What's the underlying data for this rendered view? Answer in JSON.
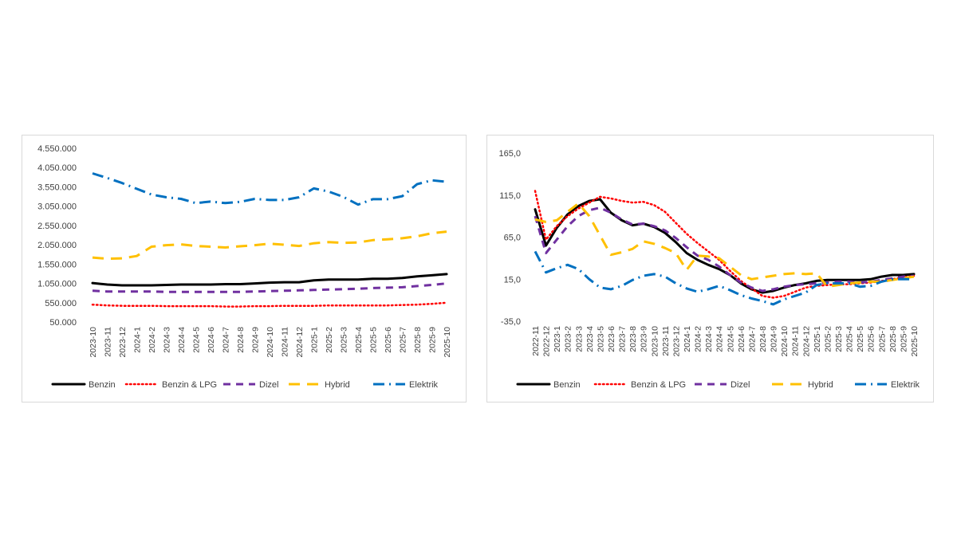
{
  "colors": {
    "Benzin": "#000000",
    "Benzin & LPG": "#ff0000",
    "Dizel": "#7030a0",
    "Hybrid": "#ffc000",
    "Elektrik": "#0070c0"
  },
  "chart_data": [
    {
      "type": "line",
      "title": "",
      "xlabel": "",
      "ylabel": "",
      "ylim": [
        50000,
        4550000
      ],
      "yticks": [
        "4.550.000",
        "4.050.000",
        "3.550.000",
        "3.050.000",
        "2.550.000",
        "2.050.000",
        "1.550.000",
        "1.050.000",
        "550.000",
        "50.000"
      ],
      "ytick_values": [
        4550000,
        4050000,
        3550000,
        3050000,
        2550000,
        2050000,
        1550000,
        1050000,
        550000,
        50000
      ],
      "grid": false,
      "legend_position": "bottom",
      "x": [
        "2023-10",
        "2023-11",
        "2023-12",
        "2024-1",
        "2024-2",
        "2024-3",
        "2024-4",
        "2024-5",
        "2024-6",
        "2024-7",
        "2024-8",
        "2024-9",
        "2024-10",
        "2024-11",
        "2024-12",
        "2025-1",
        "2025-2",
        "2025-3",
        "2025-4",
        "2025-5",
        "2025-6",
        "2025-7",
        "2025-8",
        "2025-9",
        "2025-10"
      ],
      "series": [
        {
          "name": "Benzin",
          "style": "solid",
          "values": [
            1060000,
            1020000,
            1000000,
            1000000,
            1000000,
            1010000,
            1020000,
            1020000,
            1020000,
            1030000,
            1030000,
            1050000,
            1070000,
            1080000,
            1080000,
            1130000,
            1150000,
            1150000,
            1150000,
            1170000,
            1170000,
            1190000,
            1230000,
            1260000,
            1290000
          ]
        },
        {
          "name": "Benzin & LPG",
          "style": "dotted",
          "values": [
            500000,
            480000,
            470000,
            470000,
            470000,
            460000,
            460000,
            460000,
            460000,
            450000,
            450000,
            460000,
            460000,
            470000,
            470000,
            470000,
            480000,
            480000,
            480000,
            480000,
            480000,
            490000,
            500000,
            520000,
            550000
          ]
        },
        {
          "name": "Dizel",
          "style": "dashed",
          "values": [
            860000,
            840000,
            840000,
            840000,
            840000,
            830000,
            830000,
            830000,
            830000,
            830000,
            830000,
            840000,
            850000,
            860000,
            870000,
            880000,
            890000,
            900000,
            910000,
            930000,
            940000,
            950000,
            980000,
            1010000,
            1050000
          ]
        },
        {
          "name": "Hybrid",
          "style": "longdash",
          "values": [
            1720000,
            1690000,
            1700000,
            1760000,
            2000000,
            2040000,
            2060000,
            2020000,
            2000000,
            1980000,
            2010000,
            2040000,
            2080000,
            2050000,
            2020000,
            2090000,
            2120000,
            2100000,
            2110000,
            2170000,
            2190000,
            2220000,
            2270000,
            2350000,
            2390000
          ]
        },
        {
          "name": "Elektrik",
          "style": "dashdot",
          "values": [
            3900000,
            3780000,
            3650000,
            3500000,
            3350000,
            3280000,
            3240000,
            3130000,
            3170000,
            3130000,
            3160000,
            3240000,
            3210000,
            3210000,
            3280000,
            3510000,
            3430000,
            3290000,
            3090000,
            3230000,
            3230000,
            3310000,
            3620000,
            3720000,
            3680000
          ]
        }
      ]
    },
    {
      "type": "line",
      "title": "",
      "xlabel": "",
      "ylabel": "",
      "ylim": [
        -35,
        165
      ],
      "yticks": [
        "165,0",
        "115,0",
        "65,0",
        "15,0",
        "-35,0"
      ],
      "ytick_values": [
        165,
        115,
        65,
        15,
        -35
      ],
      "grid": false,
      "legend_position": "bottom",
      "x": [
        "2022-11",
        "2022-12",
        "2023-1",
        "2023-2",
        "2023-3",
        "2023-4",
        "2023-5",
        "2023-6",
        "2023-7",
        "2023-8",
        "2023-9",
        "2023-10",
        "2023-11",
        "2023-12",
        "2024-1",
        "2024-2",
        "2024-3",
        "2024-4",
        "2024-5",
        "2024-6",
        "2024-7",
        "2024-8",
        "2024-9",
        "2024-10",
        "2024-11",
        "2024-12",
        "2025-1",
        "2025-2",
        "2025-3",
        "2025-4",
        "2025-5",
        "2025-6",
        "2025-7",
        "2025-8",
        "2025-9",
        "2025-10"
      ],
      "series": [
        {
          "name": "Benzin",
          "style": "solid",
          "values": [
            98,
            55,
            76,
            92,
            102,
            108,
            110,
            94,
            85,
            79,
            81,
            77,
            70,
            59,
            46,
            38,
            32,
            27,
            20,
            10,
            3,
            -1,
            1,
            5,
            8,
            10,
            13,
            14,
            14,
            14,
            14,
            15,
            18,
            20,
            20,
            21
          ]
        },
        {
          "name": "Benzin & LPG",
          "style": "dotted",
          "values": [
            120,
            62,
            78,
            90,
            99,
            106,
            113,
            111,
            108,
            106,
            107,
            103,
            95,
            82,
            69,
            58,
            48,
            38,
            25,
            13,
            4,
            -5,
            -7,
            -5,
            0,
            5,
            7,
            8,
            9,
            9,
            10,
            11,
            13,
            15,
            17,
            19
          ]
        },
        {
          "name": "Dizel",
          "style": "dashed",
          "values": [
            90,
            46,
            62,
            78,
            90,
            97,
            100,
            94,
            86,
            80,
            81,
            78,
            73,
            64,
            53,
            43,
            38,
            30,
            20,
            11,
            5,
            1,
            3,
            6,
            8,
            9,
            10,
            11,
            12,
            12,
            11,
            12,
            14,
            16,
            18,
            19
          ]
        },
        {
          "name": "Hybrid",
          "style": "longdash",
          "values": [
            86,
            83,
            85,
            95,
            105,
            90,
            67,
            44,
            47,
            51,
            60,
            57,
            52,
            46,
            26,
            43,
            42,
            40,
            30,
            20,
            15,
            17,
            19,
            21,
            22,
            21,
            22,
            6,
            8,
            10,
            11,
            12,
            12,
            14,
            16,
            18
          ]
        },
        {
          "name": "Elektrik",
          "style": "dashdot",
          "values": [
            48,
            23,
            28,
            32,
            27,
            15,
            5,
            3,
            7,
            14,
            19,
            21,
            18,
            10,
            4,
            0,
            3,
            7,
            2,
            -4,
            -8,
            -11,
            -15,
            -9,
            -5,
            -1,
            8,
            10,
            10,
            10,
            6,
            7,
            12,
            15,
            15,
            15
          ]
        }
      ]
    }
  ]
}
